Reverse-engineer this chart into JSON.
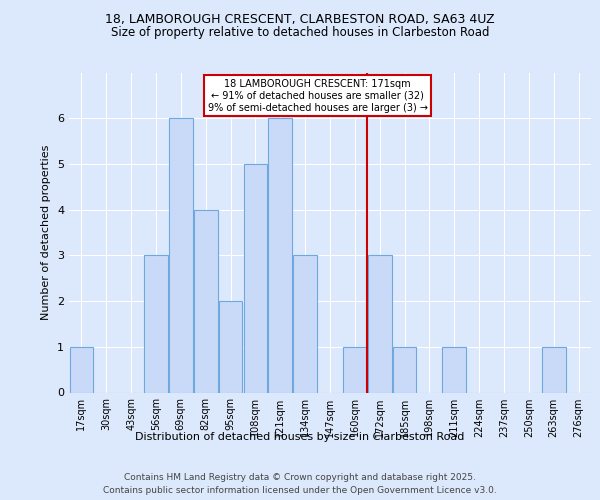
{
  "title_line1": "18, LAMBOROUGH CRESCENT, CLARBESTON ROAD, SA63 4UZ",
  "title_line2": "Size of property relative to detached houses in Clarbeston Road",
  "xlabel": "Distribution of detached houses by size in Clarbeston Road",
  "ylabel": "Number of detached properties",
  "bar_labels": [
    "17sqm",
    "30sqm",
    "43sqm",
    "56sqm",
    "69sqm",
    "82sqm",
    "95sqm",
    "108sqm",
    "121sqm",
    "134sqm",
    "147sqm",
    "160sqm",
    "172sqm",
    "185sqm",
    "198sqm",
    "211sqm",
    "224sqm",
    "237sqm",
    "250sqm",
    "263sqm",
    "276sqm"
  ],
  "bar_values": [
    1,
    0,
    0,
    3,
    6,
    4,
    2,
    5,
    6,
    3,
    0,
    1,
    3,
    1,
    0,
    1,
    0,
    0,
    0,
    1,
    0
  ],
  "bar_color": "#c9daf8",
  "bar_edge_color": "#6fa8dc",
  "vline_x_index": 11.5,
  "ylim": [
    0,
    7
  ],
  "yticks": [
    0,
    1,
    2,
    3,
    4,
    5,
    6
  ],
  "annotation_title": "18 LAMBOROUGH CRESCENT: 171sqm",
  "annotation_line1": "← 91% of detached houses are smaller (32)",
  "annotation_line2": "9% of semi-detached houses are larger (3) →",
  "annotation_box_color": "#ffffff",
  "annotation_box_edge": "#cc0000",
  "vline_color": "#cc0000",
  "footer_line1": "Contains HM Land Registry data © Crown copyright and database right 2025.",
  "footer_line2": "Contains public sector information licensed under the Open Government Licence v3.0.",
  "background_color": "#dce8fb",
  "plot_bg_color": "#dce8fb"
}
